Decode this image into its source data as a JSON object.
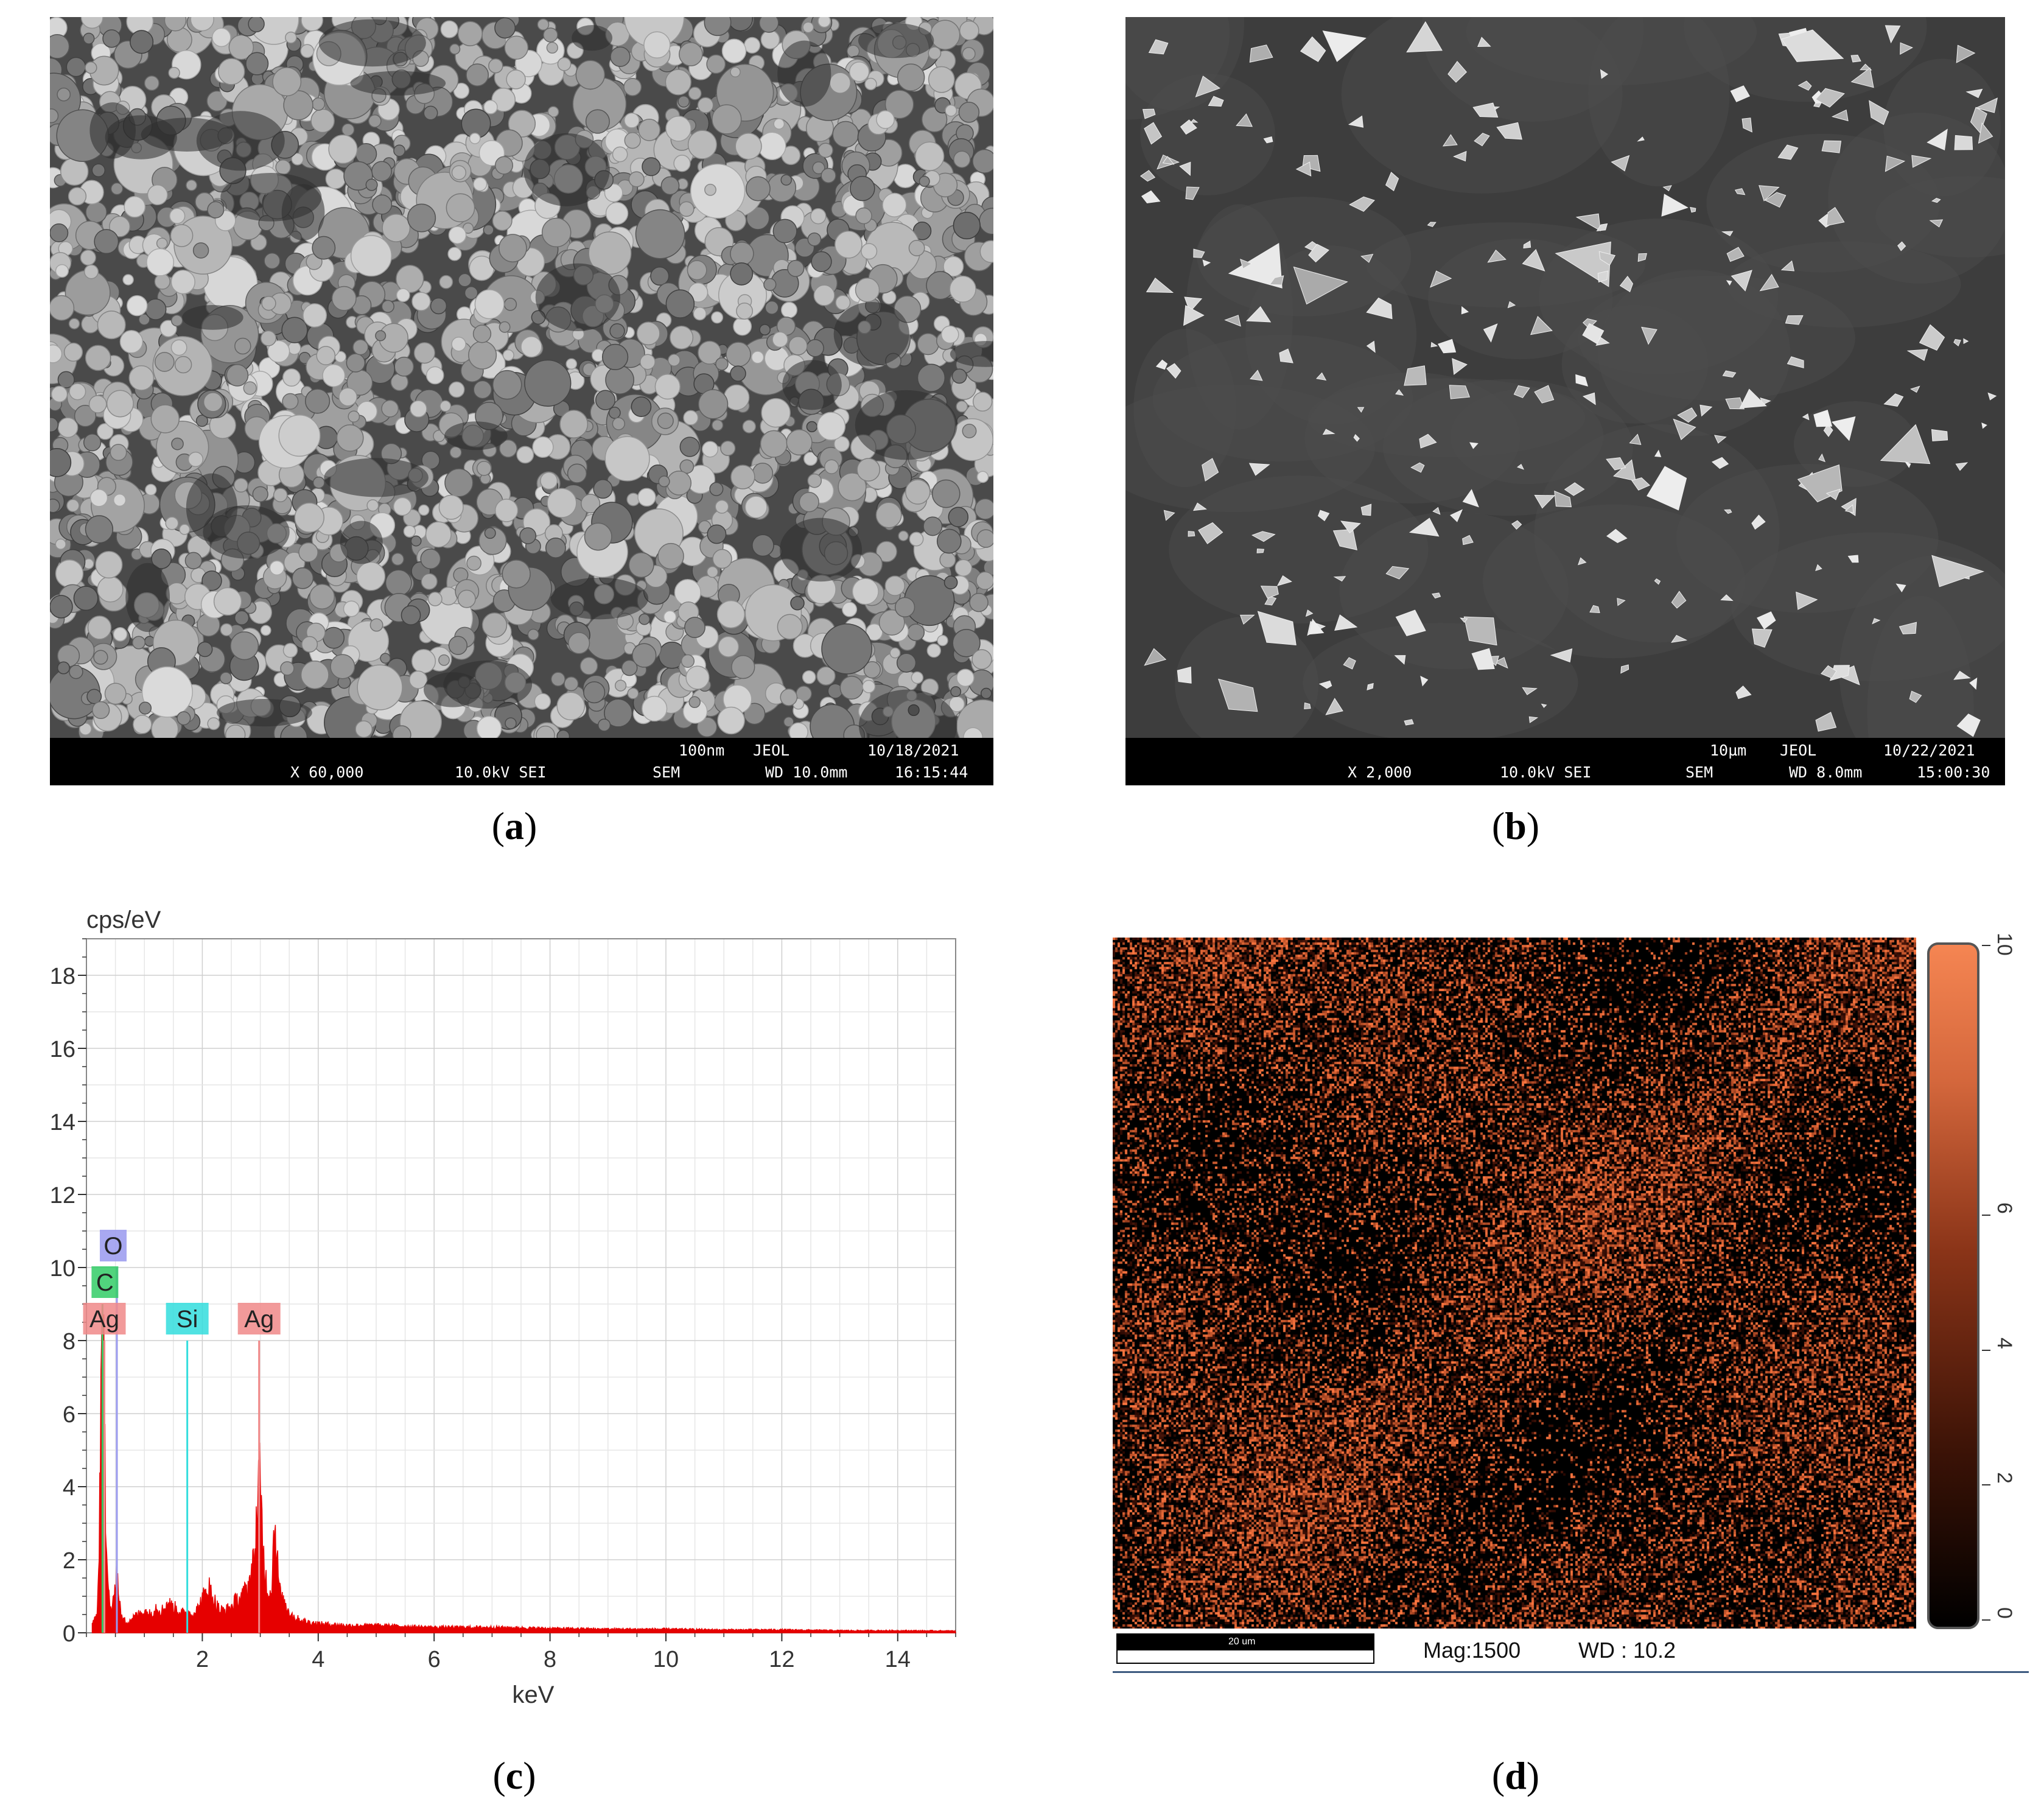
{
  "panels": [
    {
      "id": "a",
      "caption_letter": "a",
      "databar": {
        "scale_label": "100nm",
        "brand": "JEOL",
        "date": "10/18/2021",
        "magnification": "X 60,000",
        "voltage_detector": "10.0kV SEI",
        "mode": "SEM",
        "wd": "WD 10.0mm",
        "time": "16:15:44"
      }
    },
    {
      "id": "b",
      "caption_letter": "b",
      "databar": {
        "scale_label": "10µm",
        "brand": "JEOL",
        "date": "10/22/2021",
        "magnification": "X 2,000",
        "voltage_detector": "10.0kV SEI",
        "mode": "SEM",
        "wd": "WD 8.0mm",
        "time": "15:00:30"
      }
    },
    {
      "id": "c",
      "caption_letter": "c"
    },
    {
      "id": "d",
      "caption_letter": "d",
      "scale_label": "20 um",
      "mag": "Mag:1500",
      "wd": "WD : 10.2",
      "colorbar_ticks": [
        "0",
        "2",
        "4",
        "6",
        "10"
      ],
      "colorbar_range": [
        0,
        10
      ],
      "colors": {
        "low": "#000000",
        "high": "#f08050",
        "frame": "#555555"
      }
    }
  ],
  "chart_data": {
    "type": "line",
    "title": "",
    "xlabel": "keV",
    "ylabel": "cps/eV",
    "xlim": [
      0,
      15
    ],
    "ylim": [
      0,
      19
    ],
    "x_ticks": [
      "2",
      "4",
      "6",
      "8",
      "10",
      "12",
      "14"
    ],
    "y_ticks": [
      "0",
      "2",
      "4",
      "6",
      "8",
      "10",
      "12",
      "14",
      "16",
      "18"
    ],
    "grid": true,
    "series_color": "#e60000",
    "spectrum": {
      "x": [
        0.1,
        0.18,
        0.22,
        0.25,
        0.28,
        0.31,
        0.34,
        0.4,
        0.45,
        0.52,
        0.55,
        0.6,
        0.7,
        0.8,
        0.9,
        1.0,
        1.1,
        1.2,
        1.3,
        1.4,
        1.5,
        1.6,
        1.7,
        1.74,
        1.8,
        1.9,
        2.0,
        2.1,
        2.2,
        2.3,
        2.4,
        2.5,
        2.6,
        2.7,
        2.8,
        2.9,
        2.95,
        2.98,
        3.02,
        3.08,
        3.15,
        3.2,
        3.25,
        3.3,
        3.35,
        3.4,
        3.5,
        3.6,
        3.8,
        4.0,
        4.5,
        5.0,
        6.0,
        7.0,
        8.0,
        9.0,
        10.0,
        11.0,
        12.0,
        13.0,
        14.0,
        15.0
      ],
      "y": [
        0.2,
        0.5,
        2.5,
        7.5,
        8.0,
        6.5,
        2.0,
        0.8,
        0.6,
        1.8,
        1.2,
        0.4,
        0.3,
        0.4,
        0.5,
        0.6,
        0.5,
        0.7,
        0.6,
        0.8,
        0.7,
        0.6,
        0.5,
        0.6,
        0.5,
        0.6,
        0.9,
        1.3,
        0.9,
        0.6,
        0.6,
        0.7,
        0.9,
        1.0,
        1.3,
        2.0,
        3.5,
        4.3,
        3.2,
        1.6,
        1.0,
        1.4,
        3.2,
        1.8,
        1.0,
        0.8,
        0.6,
        0.4,
        0.3,
        0.25,
        0.2,
        0.2,
        0.15,
        0.15,
        0.12,
        0.1,
        0.1,
        0.08,
        0.08,
        0.06,
        0.06,
        0.05
      ]
    },
    "element_lines": [
      {
        "label": "O",
        "x": 0.525,
        "top": 10.0,
        "color": "#9999ee",
        "label_y": 10.2
      },
      {
        "label": "C",
        "x": 0.277,
        "top": 9.0,
        "color": "#33cc66",
        "label_y": 9.2
      },
      {
        "label": "Ag",
        "x": 0.31,
        "top": 8.0,
        "color": "#f08888",
        "label_y": 8.2
      },
      {
        "label": "Si",
        "x": 1.74,
        "top": 8.0,
        "color": "#33dddd",
        "label_y": 8.2
      },
      {
        "label": "Ag",
        "x": 2.98,
        "top": 8.0,
        "color": "#f08888",
        "label_y": 8.2
      }
    ]
  }
}
